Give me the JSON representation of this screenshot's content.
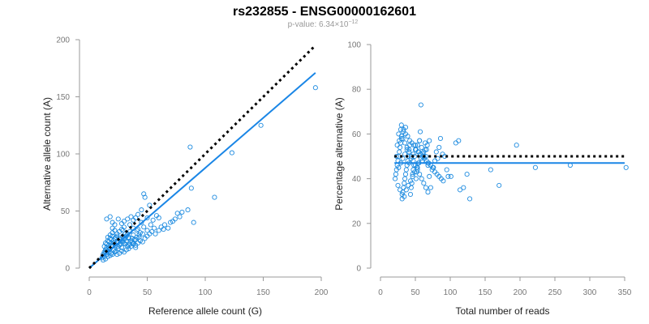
{
  "header": {
    "title": "rs232855 - ENSG00000162601",
    "pvalue_prefix": "p-value: 6.34×10",
    "pvalue_exponent": "−12"
  },
  "colors": {
    "points": "#1f8ce0",
    "fit_line": "#1a86e6",
    "reference_line": "#000000",
    "axis": "#999999"
  },
  "chart_data": [
    {
      "type": "scatter",
      "xlabel": "Reference allele count (G)",
      "ylabel": "Alternative allele count (A)",
      "xlim": [
        0,
        200
      ],
      "ylim": [
        0,
        200
      ],
      "xticks": [
        "0",
        "50",
        "100",
        "150",
        "200"
      ],
      "yticks": [
        "0",
        "50",
        "100",
        "150",
        "200"
      ],
      "reference_line": {
        "style": "dotted",
        "from": [
          0,
          0
        ],
        "to": [
          195,
          195
        ]
      },
      "fit_line": {
        "style": "solid",
        "from": [
          0,
          0
        ],
        "to": [
          195,
          171
        ]
      },
      "points": [
        [
          195,
          158
        ],
        [
          148,
          125
        ],
        [
          123,
          101
        ],
        [
          108,
          62
        ],
        [
          87,
          106
        ],
        [
          88,
          70
        ],
        [
          90,
          40
        ],
        [
          80,
          49
        ],
        [
          78,
          45
        ],
        [
          74,
          43
        ],
        [
          70,
          40
        ],
        [
          64,
          34
        ],
        [
          47,
          65
        ],
        [
          48,
          62
        ],
        [
          52,
          55
        ],
        [
          45,
          51
        ],
        [
          42,
          47
        ],
        [
          40,
          44
        ],
        [
          38,
          42
        ],
        [
          36,
          45
        ],
        [
          33,
          43
        ],
        [
          30,
          41
        ],
        [
          28,
          39
        ],
        [
          25,
          43
        ],
        [
          22,
          38
        ],
        [
          20,
          35
        ],
        [
          46,
          30
        ],
        [
          43,
          27
        ],
        [
          40,
          25
        ],
        [
          38,
          29
        ],
        [
          35,
          32
        ],
        [
          33,
          30
        ],
        [
          31,
          26
        ],
        [
          29,
          28
        ],
        [
          27,
          25
        ],
        [
          25,
          23
        ],
        [
          23,
          27
        ],
        [
          21,
          24
        ],
        [
          19,
          22
        ],
        [
          17,
          20
        ],
        [
          15,
          18
        ],
        [
          14,
          16
        ],
        [
          16,
          15
        ],
        [
          18,
          17
        ],
        [
          20,
          19
        ],
        [
          22,
          21
        ],
        [
          24,
          22
        ],
        [
          26,
          20
        ],
        [
          28,
          18
        ],
        [
          30,
          22
        ],
        [
          32,
          24
        ],
        [
          34,
          20
        ],
        [
          19,
          25
        ],
        [
          17,
          23
        ],
        [
          15,
          21
        ],
        [
          13,
          19
        ],
        [
          14,
          14
        ],
        [
          12,
          12
        ],
        [
          13,
          10
        ],
        [
          15,
          12
        ],
        [
          17,
          14
        ],
        [
          19,
          13
        ],
        [
          21,
          16
        ],
        [
          23,
          15
        ],
        [
          25,
          17
        ],
        [
          16,
          27
        ],
        [
          18,
          29
        ],
        [
          20,
          31
        ],
        [
          22,
          33
        ],
        [
          24,
          30
        ],
        [
          26,
          32
        ],
        [
          28,
          34
        ],
        [
          30,
          36
        ],
        [
          35,
          38
        ],
        [
          38,
          35
        ],
        [
          42,
          34
        ],
        [
          45,
          40
        ],
        [
          50,
          44
        ],
        [
          55,
          42
        ],
        [
          58,
          46
        ],
        [
          60,
          44
        ],
        [
          53,
          38
        ],
        [
          56,
          35
        ],
        [
          50,
          33
        ],
        [
          47,
          36
        ],
        [
          44,
          31
        ],
        [
          41,
          33
        ],
        [
          37,
          26
        ],
        [
          34,
          27
        ],
        [
          31,
          30
        ],
        [
          29,
          33
        ],
        [
          15,
          43
        ],
        [
          18,
          45
        ],
        [
          20,
          40
        ],
        [
          14,
          8
        ],
        [
          12,
          7
        ],
        [
          11,
          9
        ],
        [
          16,
          10
        ],
        [
          18,
          11
        ],
        [
          20,
          12
        ],
        [
          22,
          14
        ],
        [
          24,
          12
        ],
        [
          26,
          13
        ],
        [
          28,
          15
        ],
        [
          30,
          14
        ],
        [
          32,
          16
        ],
        [
          34,
          17
        ],
        [
          36,
          19
        ],
        [
          38,
          21
        ],
        [
          40,
          18
        ],
        [
          42,
          22
        ],
        [
          44,
          24
        ],
        [
          46,
          23
        ],
        [
          48,
          26
        ],
        [
          50,
          28
        ],
        [
          52,
          30
        ],
        [
          54,
          32
        ],
        [
          57,
          30
        ],
        [
          60,
          33
        ],
        [
          62,
          36
        ],
        [
          65,
          38
        ],
        [
          68,
          35
        ],
        [
          72,
          41
        ],
        [
          76,
          48
        ],
        [
          85,
          51
        ],
        [
          14,
          22
        ],
        [
          16,
          24
        ],
        [
          18,
          26
        ],
        [
          20,
          28
        ],
        [
          22,
          26
        ],
        [
          24,
          28
        ],
        [
          26,
          26
        ],
        [
          28,
          24
        ],
        [
          30,
          26
        ],
        [
          32,
          28
        ],
        [
          34,
          26
        ],
        [
          36,
          24
        ],
        [
          38,
          22
        ],
        [
          40,
          20
        ],
        [
          13,
          14
        ],
        [
          15,
          16
        ],
        [
          17,
          18
        ],
        [
          19,
          20
        ],
        [
          21,
          22
        ],
        [
          23,
          20
        ],
        [
          25,
          19
        ],
        [
          27,
          21
        ],
        [
          29,
          23
        ],
        [
          31,
          21
        ],
        [
          33,
          19
        ],
        [
          35,
          21
        ],
        [
          37,
          23
        ],
        [
          39,
          25
        ],
        [
          41,
          27
        ],
        [
          43,
          29
        ]
      ]
    },
    {
      "type": "scatter",
      "xlabel": "Total number of reads",
      "ylabel": "Percentage alternative (A)",
      "xlim": [
        0,
        350
      ],
      "ylim": [
        0,
        100
      ],
      "xticks": [
        "0",
        "50",
        "100",
        "150",
        "200",
        "250",
        "300",
        "350"
      ],
      "yticks": [
        "0",
        "20",
        "40",
        "60",
        "80",
        "100"
      ],
      "reference_line": {
        "style": "dotted",
        "y": 50,
        "x_range": [
          20,
          350
        ]
      },
      "fit_line": {
        "style": "solid",
        "y": 47,
        "x_range": [
          20,
          350
        ]
      },
      "points": [
        [
          352,
          45
        ],
        [
          272,
          46
        ],
        [
          222,
          45
        ],
        [
          195,
          55
        ],
        [
          170,
          37
        ],
        [
          158,
          44
        ],
        [
          128,
          31
        ],
        [
          124,
          42
        ],
        [
          119,
          36
        ],
        [
          114,
          35
        ],
        [
          112,
          57
        ],
        [
          108,
          56
        ],
        [
          101,
          41
        ],
        [
          97,
          41
        ],
        [
          95,
          44
        ],
        [
          92,
          50
        ],
        [
          89,
          51
        ],
        [
          86,
          58
        ],
        [
          84,
          54
        ],
        [
          82,
          49
        ],
        [
          80,
          52
        ],
        [
          78,
          48
        ],
        [
          76,
          45
        ],
        [
          74,
          44
        ],
        [
          72,
          36
        ],
        [
          70,
          41
        ],
        [
          68,
          47
        ],
        [
          66,
          53
        ],
        [
          64,
          56
        ],
        [
          62,
          50
        ],
        [
          60,
          48
        ],
        [
          58,
          73
        ],
        [
          57,
          61
        ],
        [
          56,
          57
        ],
        [
          55,
          52
        ],
        [
          54,
          47
        ],
        [
          53,
          45
        ],
        [
          52,
          43
        ],
        [
          51,
          40
        ],
        [
          50,
          55
        ],
        [
          49,
          50
        ],
        [
          48,
          46
        ],
        [
          47,
          44
        ],
        [
          46,
          42
        ],
        [
          45,
          38
        ],
        [
          44,
          36
        ],
        [
          43,
          33
        ],
        [
          42,
          55
        ],
        [
          41,
          53
        ],
        [
          40,
          50
        ],
        [
          39,
          48
        ],
        [
          38,
          46
        ],
        [
          37,
          44
        ],
        [
          36,
          42
        ],
        [
          35,
          40
        ],
        [
          34,
          38
        ],
        [
          33,
          36
        ],
        [
          32,
          34
        ],
        [
          31,
          31
        ],
        [
          30,
          58
        ],
        [
          29,
          56
        ],
        [
          28,
          54
        ],
        [
          27,
          52
        ],
        [
          26,
          50
        ],
        [
          25,
          48
        ],
        [
          24,
          46
        ],
        [
          23,
          44
        ],
        [
          22,
          42
        ],
        [
          21,
          40
        ],
        [
          30,
          64
        ],
        [
          33,
          62
        ],
        [
          36,
          60
        ],
        [
          39,
          59
        ],
        [
          42,
          57
        ],
        [
          45,
          56
        ],
        [
          48,
          55
        ],
        [
          51,
          53
        ],
        [
          54,
          52
        ],
        [
          57,
          51
        ],
        [
          60,
          50
        ],
        [
          63,
          49
        ],
        [
          66,
          48
        ],
        [
          69,
          47
        ],
        [
          72,
          46
        ],
        [
          75,
          45
        ],
        [
          78,
          43
        ],
        [
          81,
          42
        ],
        [
          84,
          41
        ],
        [
          87,
          40
        ],
        [
          90,
          39
        ],
        [
          25,
          37
        ],
        [
          28,
          35
        ],
        [
          31,
          33
        ],
        [
          34,
          32
        ],
        [
          37,
          35
        ],
        [
          40,
          37
        ],
        [
          43,
          39
        ],
        [
          46,
          41
        ],
        [
          49,
          43
        ],
        [
          52,
          45
        ],
        [
          55,
          47
        ],
        [
          58,
          49
        ],
        [
          61,
          51
        ],
        [
          64,
          53
        ],
        [
          67,
          55
        ],
        [
          70,
          57
        ],
        [
          26,
          60
        ],
        [
          29,
          62
        ],
        [
          32,
          58
        ],
        [
          35,
          56
        ],
        [
          38,
          54
        ],
        [
          41,
          52
        ],
        [
          44,
          50
        ],
        [
          47,
          48
        ],
        [
          50,
          46
        ],
        [
          53,
          44
        ],
        [
          56,
          42
        ],
        [
          59,
          40
        ],
        [
          62,
          38
        ],
        [
          65,
          36
        ],
        [
          68,
          34
        ],
        [
          24,
          55
        ],
        [
          27,
          57
        ],
        [
          30,
          59
        ],
        [
          33,
          61
        ],
        [
          36,
          63
        ],
        [
          23,
          50
        ],
        [
          26,
          45
        ],
        [
          29,
          47
        ],
        [
          32,
          49
        ],
        [
          35,
          51
        ],
        [
          38,
          53
        ],
        [
          41,
          47
        ],
        [
          44,
          49
        ],
        [
          47,
          51
        ],
        [
          50,
          53
        ],
        [
          53,
          55
        ],
        [
          56,
          57
        ],
        [
          59,
          54
        ],
        [
          62,
          52
        ],
        [
          65,
          50
        ],
        [
          68,
          46
        ]
      ]
    }
  ]
}
